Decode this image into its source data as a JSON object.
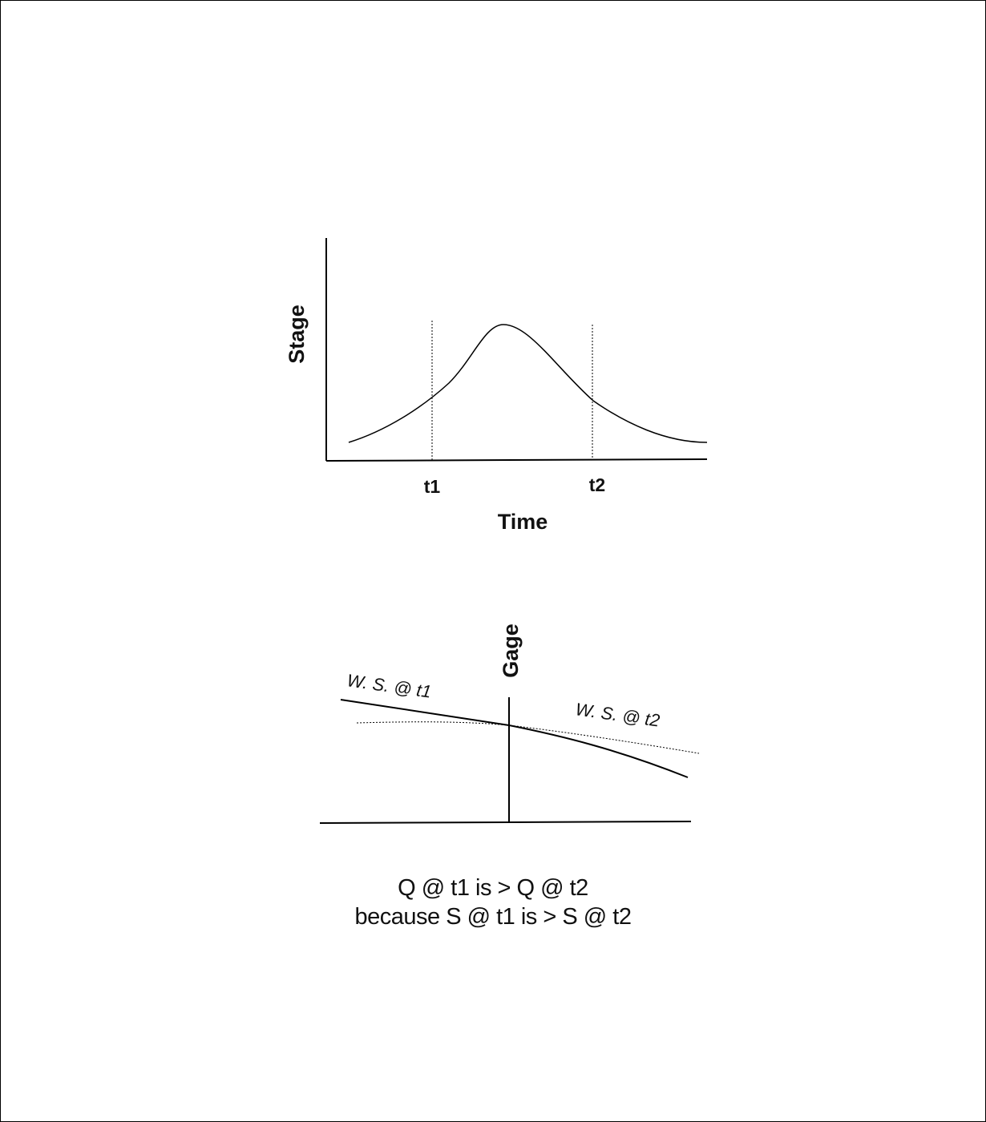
{
  "stage_chart": {
    "y_label": "Stage",
    "x_label": "Time",
    "marker_t1": "t1",
    "marker_t2": "t2"
  },
  "water_surface": {
    "gage_label": "Gage",
    "ws_t1_label": "W. S. @ t1",
    "ws_t2_label": "W. S. @ t2"
  },
  "caption": {
    "line1": "Q @ t1 is > Q @ t2",
    "line2": "because S @ t1 is > S @ t2"
  }
}
